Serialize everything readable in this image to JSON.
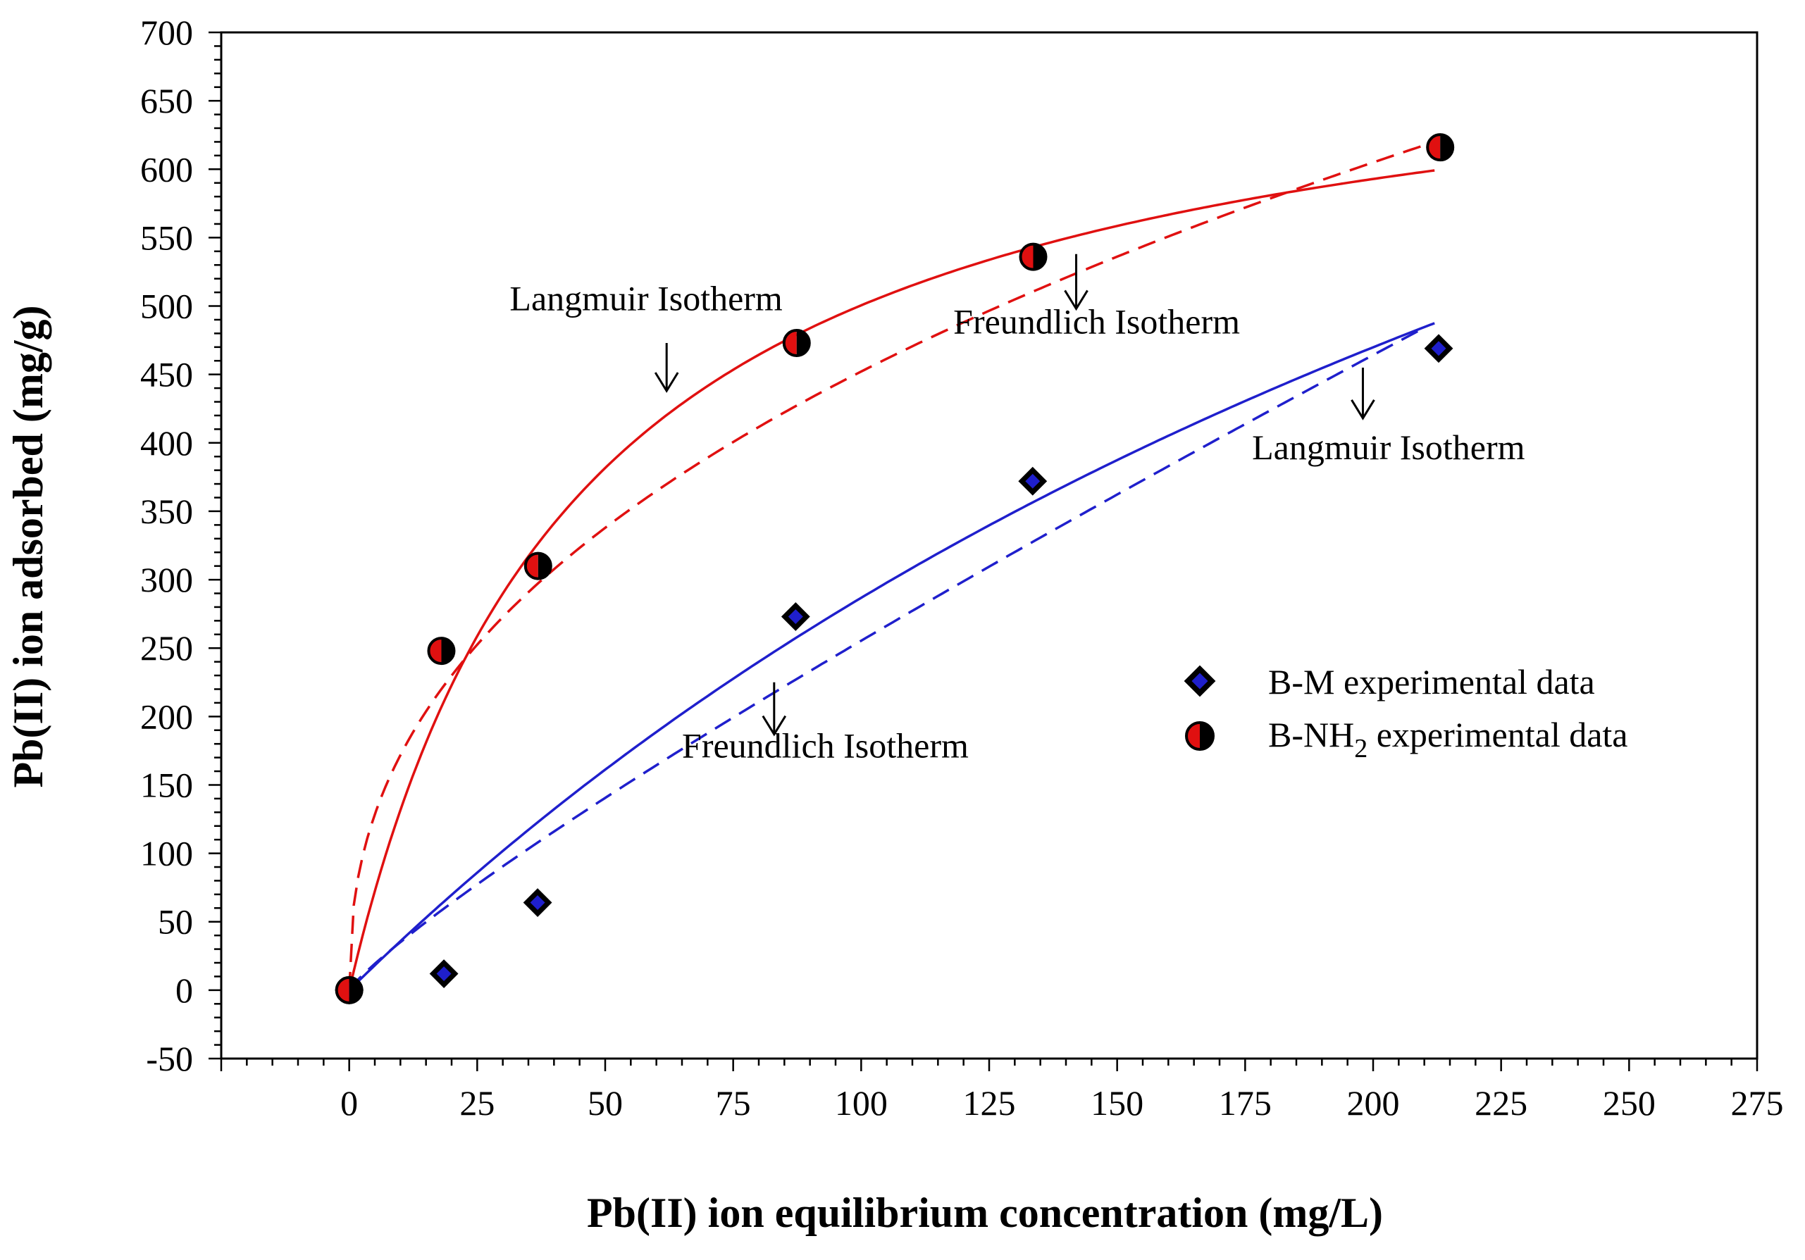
{
  "chart_data": {
    "type": "scatter",
    "title": "",
    "xlabel": "Pb(II) ion equilibrium concentration (mg/L)",
    "ylabel": "Pb(II) ion adsorbed (mg/g)",
    "xlim": [
      -25,
      275
    ],
    "ylim": [
      -50,
      700
    ],
    "x_ticks": [
      0,
      25,
      50,
      75,
      100,
      125,
      150,
      175,
      200,
      225,
      250,
      275
    ],
    "y_ticks": [
      -50,
      0,
      50,
      100,
      150,
      200,
      250,
      300,
      350,
      400,
      450,
      500,
      550,
      600,
      650,
      700
    ],
    "grid": false,
    "legend_position": "right",
    "series": [
      {
        "name": "B-M experimental data",
        "legend_label": "B-M experimental data",
        "marker": "diamond",
        "colors": {
          "primary": "#1f1fcc",
          "secondary": "#000000"
        },
        "x": [
          0,
          18.5,
          36.8,
          87.2,
          133.5,
          212.8
        ],
        "y": [
          0,
          12,
          64,
          273,
          372,
          469
        ]
      },
      {
        "name": "B-NH2 experimental data",
        "legend_label_base": "B-NH",
        "legend_label_sub": "2",
        "legend_label_rest": " experimental data",
        "marker": "circle",
        "colors": {
          "primary": "#e01010",
          "secondary": "#000000"
        },
        "x": [
          0,
          18,
          36.9,
          87.4,
          133.6,
          213.1
        ],
        "y": [
          0,
          248,
          310,
          473,
          536,
          616
        ]
      }
    ],
    "fits": [
      {
        "name": "B-NH2 Langmuir Isotherm",
        "model": "langmuir",
        "qmax": 727,
        "KL": 0.0221,
        "x_range": [
          0,
          212
        ],
        "style": "solid",
        "color": "#e01010"
      },
      {
        "name": "B-NH2 Freundlich Isotherm",
        "model": "freundlich",
        "KF": 65.3,
        "n": 2.38,
        "x_range": [
          0,
          212
        ],
        "style": "dashed",
        "color": "#e01010"
      },
      {
        "name": "B-M Langmuir Isotherm",
        "model": "langmuir",
        "qmax": 1300,
        "KL": 0.00283,
        "x_range": [
          0,
          212
        ],
        "style": "solid",
        "color": "#1f1fcc"
      },
      {
        "name": "B-M Freundlich Isotherm",
        "model": "freundlich",
        "KF": 4.82,
        "n": 1.16,
        "x_range": [
          0,
          209
        ],
        "style": "dashed",
        "color": "#1f1fcc"
      }
    ],
    "annotations": [
      {
        "text": "Langmuir Isotherm",
        "label_at": [
          58,
          497
        ],
        "arrow_from": [
          62,
          473
        ],
        "arrow_to": [
          62,
          438
        ]
      },
      {
        "text": "Freundlich Isotherm",
        "label_at": [
          146,
          480
        ],
        "arrow_from": [
          142,
          538
        ],
        "arrow_to": [
          142,
          498
        ]
      },
      {
        "text": "Langmuir Isotherm",
        "label_at": [
          203,
          388
        ],
        "arrow_from": [
          198,
          455
        ],
        "arrow_to": [
          198,
          418
        ]
      },
      {
        "text": "Freundlich Isotherm",
        "label_at": [
          93,
          170
        ],
        "arrow_from": [
          83,
          225
        ],
        "arrow_to": [
          83,
          187
        ]
      }
    ]
  }
}
